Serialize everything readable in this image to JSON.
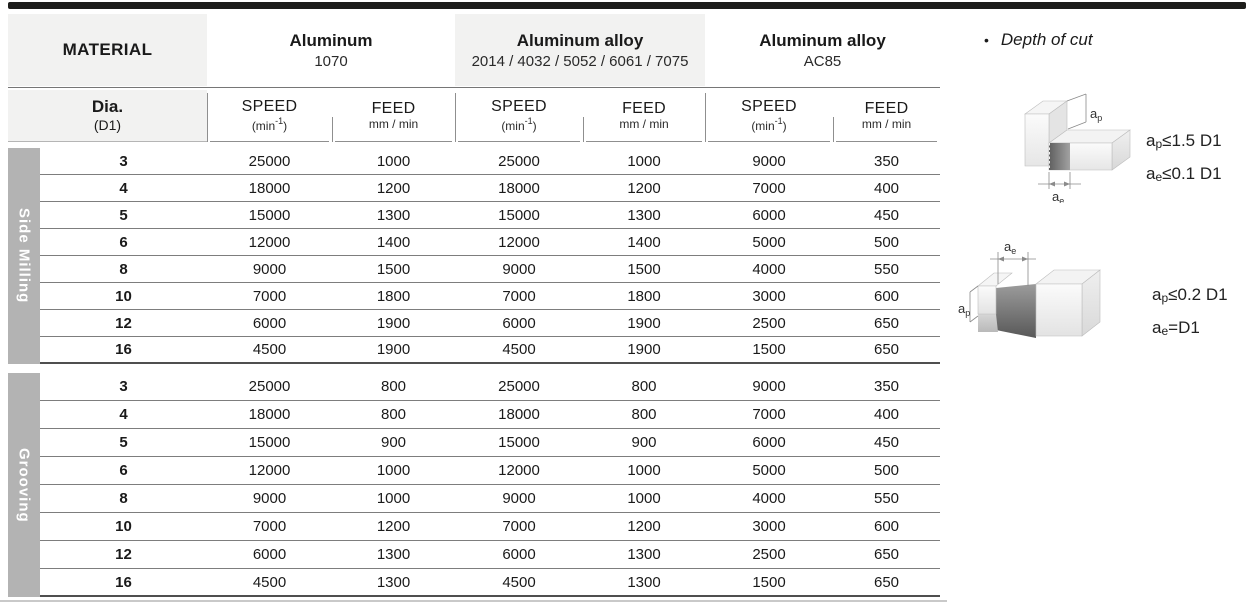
{
  "table": {
    "material_label": "MATERIAL",
    "groups": [
      {
        "name": "Aluminum",
        "grades": "1070"
      },
      {
        "name": "Aluminum alloy",
        "grades": "2014 / 4032 / 5052 / 6061 / 7075"
      },
      {
        "name": "Aluminum alloy",
        "grades": "AC85"
      }
    ],
    "dia": {
      "label": "Dia.",
      "sub": "(D1)"
    },
    "col_speed": {
      "label": "SPEED",
      "unit_pre": "(min",
      "unit_sup": "-1",
      "unit_post": ")"
    },
    "col_feed": {
      "label": "FEED",
      "unit": "mm / min"
    },
    "sections": [
      {
        "label": "Side Milling",
        "rows": [
          [
            3,
            25000,
            1000,
            25000,
            1000,
            9000,
            350
          ],
          [
            4,
            18000,
            1200,
            18000,
            1200,
            7000,
            400
          ],
          [
            5,
            15000,
            1300,
            15000,
            1300,
            6000,
            450
          ],
          [
            6,
            12000,
            1400,
            12000,
            1400,
            5000,
            500
          ],
          [
            8,
            9000,
            1500,
            9000,
            1500,
            4000,
            550
          ],
          [
            10,
            7000,
            1800,
            7000,
            1800,
            3000,
            600
          ],
          [
            12,
            6000,
            1900,
            6000,
            1900,
            2500,
            650
          ],
          [
            16,
            4500,
            1900,
            4500,
            1900,
            1500,
            650
          ]
        ]
      },
      {
        "label": "Grooving",
        "rows": [
          [
            3,
            25000,
            800,
            25000,
            800,
            9000,
            350
          ],
          [
            4,
            18000,
            800,
            18000,
            800,
            7000,
            400
          ],
          [
            5,
            15000,
            900,
            15000,
            900,
            6000,
            450
          ],
          [
            6,
            12000,
            1000,
            12000,
            1000,
            5000,
            500
          ],
          [
            8,
            9000,
            1000,
            9000,
            1000,
            4000,
            550
          ],
          [
            10,
            7000,
            1200,
            7000,
            1200,
            3000,
            600
          ],
          [
            12,
            6000,
            1300,
            6000,
            1300,
            2500,
            650
          ],
          [
            16,
            4500,
            1300,
            4500,
            1300,
            1500,
            650
          ]
        ]
      }
    ]
  },
  "notes": {
    "bullet": "•",
    "title": "Depth of cut",
    "dims": {
      "a": "a",
      "p": "p",
      "e": "e"
    },
    "side_milling_rules": [
      {
        "base": "a",
        "sub": "p",
        "rest": "≤1.5 D1"
      },
      {
        "base": "a",
        "sub": "e",
        "rest": "≤0.1 D1"
      }
    ],
    "grooving_rules": [
      {
        "base": "a",
        "sub": "p",
        "rest": "≤0.2 D1"
      },
      {
        "base": "a",
        "sub": "e",
        "rest": "=D1"
      }
    ]
  }
}
